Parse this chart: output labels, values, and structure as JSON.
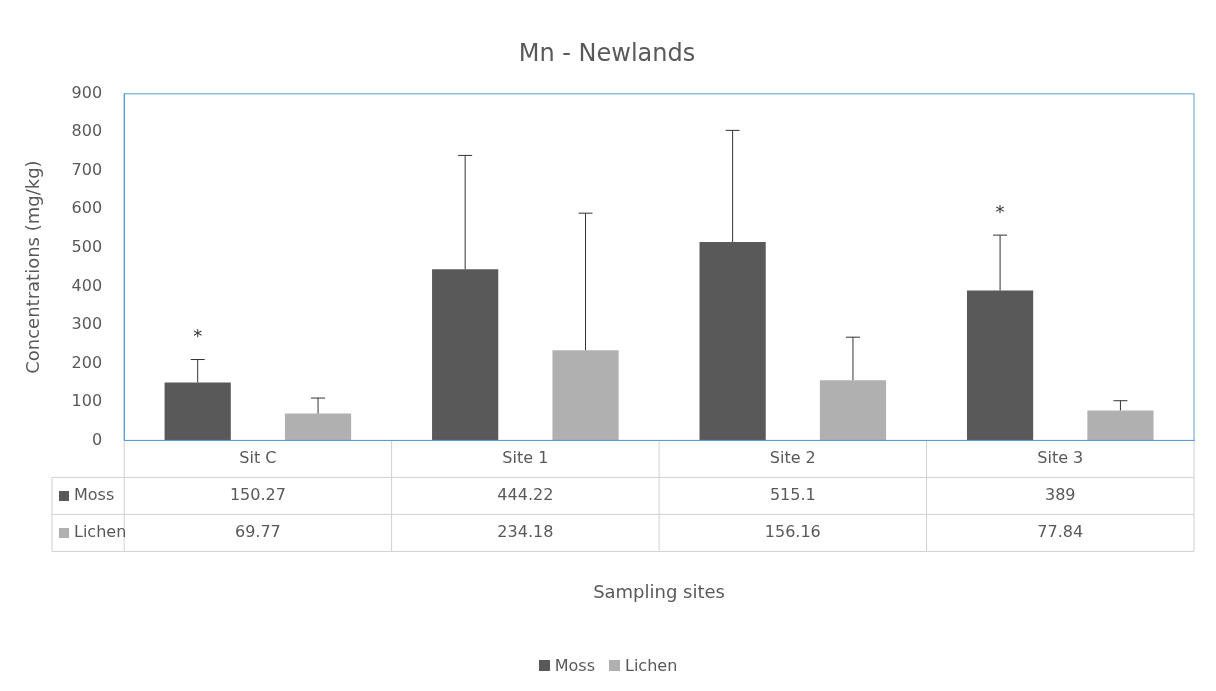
{
  "chart_data": {
    "type": "bar",
    "title": "Mn - Newlands",
    "ylabel": "Concentrations (mg/kg)",
    "categories": [
      "Sit C",
      "Site 1",
      "Site 2",
      "Site 3"
    ],
    "series": [
      {
        "name": "Moss",
        "color": "#595959",
        "values": [
          150.27,
          444.22,
          515.1,
          389
        ],
        "errors": [
          [
            150.27,
            210
          ],
          [
            444.22,
            740
          ],
          [
            515.1,
            805
          ],
          [
            389,
            533
          ]
        ]
      },
      {
        "name": "Lichen",
        "color": "#b0b0b0",
        "values": [
          69.77,
          234.18,
          156.16,
          77.84
        ],
        "errors": [
          [
            69.77,
            110
          ],
          [
            234.18,
            590
          ],
          [
            156.16,
            268
          ],
          [
            77.84,
            103
          ]
        ]
      }
    ],
    "ylim": [
      0,
      900
    ],
    "yticks": [
      0,
      100,
      200,
      300,
      400,
      500,
      600,
      700,
      800,
      900
    ],
    "grid": false,
    "legend": "bottom",
    "data_labels": true,
    "annotations": [
      "*",
      "*",
      "Sampling sites"
    ]
  }
}
